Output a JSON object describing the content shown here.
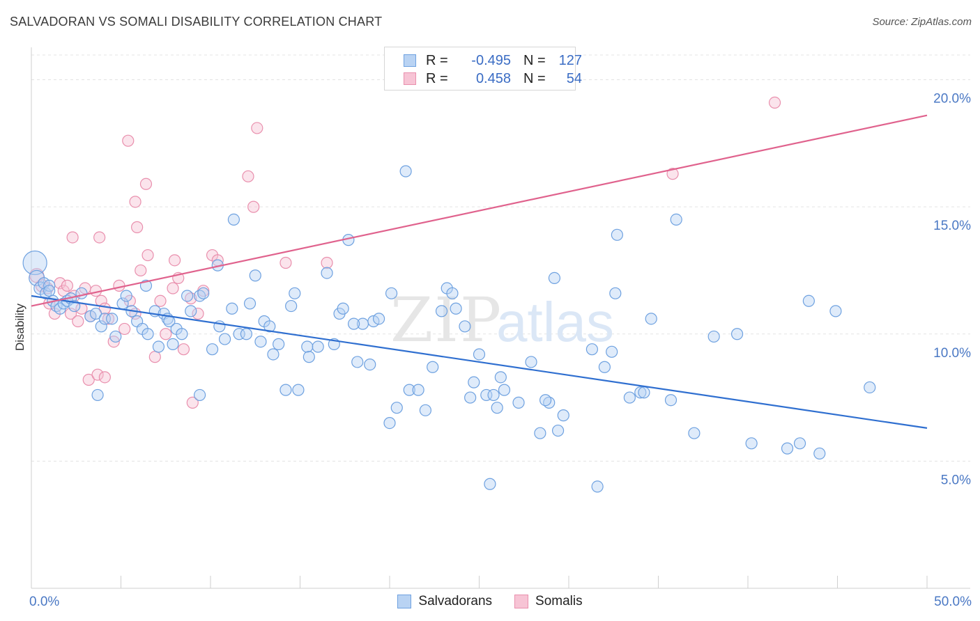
{
  "chart_data": {
    "type": "scatter",
    "title": "SALVADORAN VS SOMALI DISABILITY CORRELATION CHART",
    "source": "Source: ZipAtlas.com",
    "xlabel": "",
    "ylabel": "Disability",
    "xlim": [
      0,
      50
    ],
    "ylim": [
      0,
      21
    ],
    "x_tick_labels": [
      "0.0%",
      "50.0%"
    ],
    "y_ticks": [
      5,
      10,
      15,
      20
    ],
    "y_tick_labels": [
      "5.0%",
      "10.0%",
      "15.0%",
      "20.0%"
    ],
    "grid": true,
    "watermark": "ZIPatlas",
    "legend": [
      {
        "name": "Salvadorans",
        "r_label": "R =",
        "r": "-0.495",
        "n_label": "N =",
        "n": "127",
        "color": "#6ea1e0",
        "fill": "#b9d3f3"
      },
      {
        "name": "Somalis",
        "r_label": "R =",
        "r": "0.458",
        "n_label": "N =",
        "n": "54",
        "color": "#e98fad",
        "fill": "#f7c4d5"
      }
    ],
    "series": [
      {
        "name": "Salvadorans",
        "color": "#6ea1e0",
        "trend": {
          "x": [
            0,
            50
          ],
          "y": [
            11.5,
            6.3
          ],
          "color": "#2f6fd0"
        },
        "points": [
          [
            0.2,
            12.8
          ],
          [
            0.3,
            12.2
          ],
          [
            0.5,
            11.8
          ],
          [
            0.7,
            12.0
          ],
          [
            0.8,
            11.6
          ],
          [
            1.0,
            11.9
          ],
          [
            1.0,
            11.7
          ],
          [
            1.2,
            11.3
          ],
          [
            1.4,
            11.1
          ],
          [
            1.6,
            11.0
          ],
          [
            1.8,
            11.2
          ],
          [
            2.0,
            11.3
          ],
          [
            2.2,
            11.4
          ],
          [
            2.4,
            11.1
          ],
          [
            2.8,
            11.6
          ],
          [
            3.3,
            10.7
          ],
          [
            3.6,
            10.8
          ],
          [
            3.9,
            10.3
          ],
          [
            4.1,
            10.6
          ],
          [
            4.5,
            10.6
          ],
          [
            5.1,
            11.2
          ],
          [
            5.3,
            11.5
          ],
          [
            5.6,
            10.9
          ],
          [
            5.9,
            10.5
          ],
          [
            6.2,
            10.2
          ],
          [
            6.4,
            11.9
          ],
          [
            6.9,
            10.9
          ],
          [
            7.1,
            9.5
          ],
          [
            7.4,
            10.8
          ],
          [
            7.6,
            10.6
          ],
          [
            7.7,
            10.5
          ],
          [
            7.9,
            9.6
          ],
          [
            8.1,
            10.2
          ],
          [
            8.4,
            10.0
          ],
          [
            8.7,
            11.5
          ],
          [
            8.9,
            10.9
          ],
          [
            9.4,
            11.5
          ],
          [
            9.6,
            11.6
          ],
          [
            9.4,
            7.6
          ],
          [
            10.1,
            9.4
          ],
          [
            10.4,
            12.7
          ],
          [
            10.8,
            9.8
          ],
          [
            10.5,
            10.3
          ],
          [
            11.2,
            11.0
          ],
          [
            11.6,
            10.0
          ],
          [
            11.3,
            14.5
          ],
          [
            12.0,
            10.0
          ],
          [
            12.2,
            11.2
          ],
          [
            12.5,
            12.3
          ],
          [
            13.0,
            10.5
          ],
          [
            13.3,
            10.3
          ],
          [
            13.5,
            9.2
          ],
          [
            13.8,
            9.6
          ],
          [
            14.2,
            7.8
          ],
          [
            14.5,
            11.1
          ],
          [
            14.9,
            7.8
          ],
          [
            14.7,
            11.6
          ],
          [
            15.4,
            9.5
          ],
          [
            15.5,
            9.1
          ],
          [
            16.0,
            9.5
          ],
          [
            16.5,
            12.4
          ],
          [
            16.9,
            9.6
          ],
          [
            17.2,
            10.8
          ],
          [
            17.4,
            11.0
          ],
          [
            17.7,
            13.7
          ],
          [
            18.2,
            8.9
          ],
          [
            18.5,
            10.4
          ],
          [
            18.9,
            8.8
          ],
          [
            19.1,
            10.5
          ],
          [
            19.4,
            10.6
          ],
          [
            20.1,
            11.6
          ],
          [
            20.4,
            7.1
          ],
          [
            20.0,
            6.5
          ],
          [
            21.1,
            7.8
          ],
          [
            20.9,
            16.4
          ],
          [
            21.6,
            7.8
          ],
          [
            22.0,
            7.0
          ],
          [
            22.4,
            8.7
          ],
          [
            22.9,
            10.9
          ],
          [
            23.2,
            11.8
          ],
          [
            23.5,
            11.6
          ],
          [
            23.7,
            11.0
          ],
          [
            24.2,
            10.3
          ],
          [
            24.5,
            7.5
          ],
          [
            24.7,
            8.1
          ],
          [
            25.0,
            9.2
          ],
          [
            25.4,
            7.6
          ],
          [
            25.8,
            7.6
          ],
          [
            26.2,
            8.3
          ],
          [
            26.4,
            7.8
          ],
          [
            26.0,
            7.1
          ],
          [
            27.2,
            7.3
          ],
          [
            27.9,
            8.9
          ],
          [
            28.4,
            6.1
          ],
          [
            28.9,
            7.3
          ],
          [
            29.2,
            12.2
          ],
          [
            29.4,
            6.2
          ],
          [
            29.7,
            6.8
          ],
          [
            31.3,
            9.4
          ],
          [
            32.0,
            8.7
          ],
          [
            32.4,
            9.3
          ],
          [
            32.6,
            11.6
          ],
          [
            32.7,
            13.9
          ],
          [
            33.4,
            7.5
          ],
          [
            34.0,
            7.7
          ],
          [
            34.2,
            7.7
          ],
          [
            34.6,
            10.6
          ],
          [
            35.7,
            7.4
          ],
          [
            36.0,
            14.5
          ],
          [
            37.0,
            6.1
          ],
          [
            38.1,
            9.9
          ],
          [
            39.4,
            10.0
          ],
          [
            40.2,
            5.7
          ],
          [
            42.2,
            5.5
          ],
          [
            42.9,
            5.7
          ],
          [
            43.4,
            11.3
          ],
          [
            44.0,
            5.3
          ],
          [
            44.9,
            10.9
          ],
          [
            46.8,
            7.9
          ],
          [
            25.6,
            4.1
          ],
          [
            28.7,
            7.4
          ],
          [
            18.0,
            10.4
          ],
          [
            31.6,
            4.0
          ],
          [
            3.7,
            7.6
          ],
          [
            4.7,
            9.9
          ],
          [
            6.5,
            10.0
          ],
          [
            12.8,
            9.7
          ]
        ],
        "sizes": {
          "0": 34,
          "1": 22,
          "2": 18,
          "3": 16
        }
      },
      {
        "name": "Somalis",
        "color": "#e98fad",
        "trend": {
          "x": [
            0,
            50
          ],
          "y": [
            11.1,
            18.6
          ],
          "color": "#e0628d"
        },
        "points": [
          [
            0.3,
            12.3
          ],
          [
            0.6,
            11.9
          ],
          [
            0.9,
            11.8
          ],
          [
            1.0,
            11.2
          ],
          [
            1.3,
            10.8
          ],
          [
            1.6,
            12.0
          ],
          [
            1.8,
            11.7
          ],
          [
            2.0,
            11.9
          ],
          [
            2.2,
            10.8
          ],
          [
            2.4,
            11.5
          ],
          [
            2.6,
            10.5
          ],
          [
            2.8,
            11.0
          ],
          [
            3.0,
            11.8
          ],
          [
            3.3,
            10.7
          ],
          [
            3.6,
            11.7
          ],
          [
            3.9,
            11.3
          ],
          [
            4.1,
            11.0
          ],
          [
            4.3,
            10.6
          ],
          [
            4.6,
            9.7
          ],
          [
            4.9,
            11.9
          ],
          [
            5.2,
            10.2
          ],
          [
            5.5,
            11.3
          ],
          [
            5.8,
            10.8
          ],
          [
            6.1,
            12.5
          ],
          [
            6.5,
            13.1
          ],
          [
            6.9,
            9.1
          ],
          [
            7.2,
            11.3
          ],
          [
            7.5,
            10.0
          ],
          [
            7.9,
            11.8
          ],
          [
            8.2,
            12.2
          ],
          [
            8.5,
            9.4
          ],
          [
            8.9,
            11.4
          ],
          [
            9.3,
            10.8
          ],
          [
            9.6,
            11.7
          ],
          [
            10.1,
            13.1
          ],
          [
            10.4,
            12.9
          ],
          [
            9.0,
            7.3
          ],
          [
            12.1,
            16.2
          ],
          [
            12.4,
            15.0
          ],
          [
            12.6,
            18.1
          ],
          [
            14.2,
            12.8
          ],
          [
            2.3,
            13.8
          ],
          [
            3.8,
            13.8
          ],
          [
            5.4,
            17.6
          ],
          [
            5.8,
            15.2
          ],
          [
            6.4,
            15.9
          ],
          [
            5.9,
            14.2
          ],
          [
            3.2,
            8.2
          ],
          [
            3.7,
            8.4
          ],
          [
            4.1,
            8.3
          ],
          [
            8.0,
            12.9
          ],
          [
            16.5,
            12.8
          ],
          [
            35.8,
            16.3
          ],
          [
            41.5,
            19.1
          ]
        ],
        "sizes": {
          "0": 20,
          "1": 18
        }
      }
    ]
  }
}
